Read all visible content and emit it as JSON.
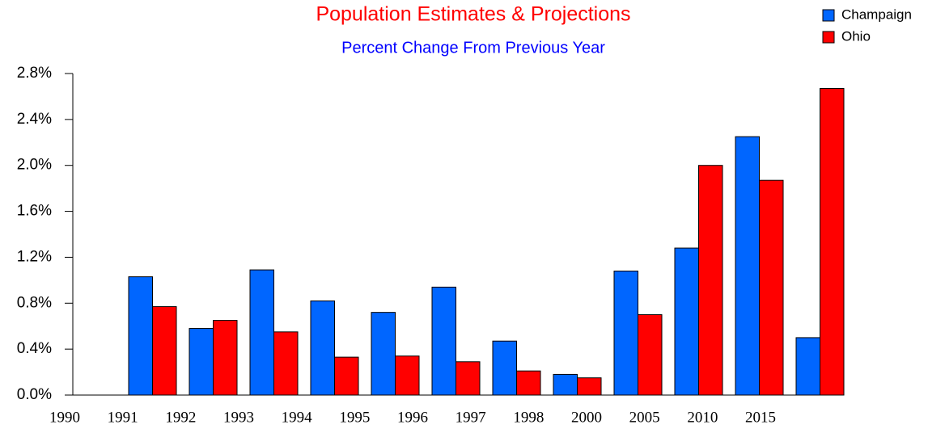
{
  "chart_data": {
    "type": "bar",
    "title": "Population Estimates & Projections",
    "subtitle": "Percent Change From Previous Year",
    "title_color": "#ff0000",
    "subtitle_color": "#0000ff",
    "categories": [
      "1990",
      "1991",
      "1992",
      "1993",
      "1994",
      "1995",
      "1996",
      "1997",
      "1998",
      "2000",
      "2005",
      "2010",
      "2015"
    ],
    "series": [
      {
        "name": "Champaign",
        "color": "#0066ff",
        "values": [
          null,
          1.03,
          0.58,
          1.09,
          0.82,
          0.72,
          0.94,
          0.47,
          0.18,
          1.08,
          1.28,
          2.25,
          0.5
        ]
      },
      {
        "name": "Ohio",
        "color": "#ff0000",
        "values": [
          null,
          0.77,
          0.65,
          0.55,
          0.33,
          0.34,
          0.29,
          0.21,
          0.15,
          0.7,
          2.0,
          1.87,
          2.67
        ]
      }
    ],
    "ylim": [
      0,
      2.8
    ],
    "yticks": [
      {
        "value": 0,
        "label": "0.0%"
      },
      {
        "value": 0.4,
        "label": "0.4%"
      },
      {
        "value": 0.8,
        "label": "0.8%"
      },
      {
        "value": 1.2,
        "label": "1.2%"
      },
      {
        "value": 1.6,
        "label": "1.6%"
      },
      {
        "value": 2.0,
        "label": "2.0%"
      },
      {
        "value": 2.4,
        "label": "2.4%"
      },
      {
        "value": 2.8,
        "label": "2.8%"
      }
    ],
    "legend": "top-right"
  }
}
